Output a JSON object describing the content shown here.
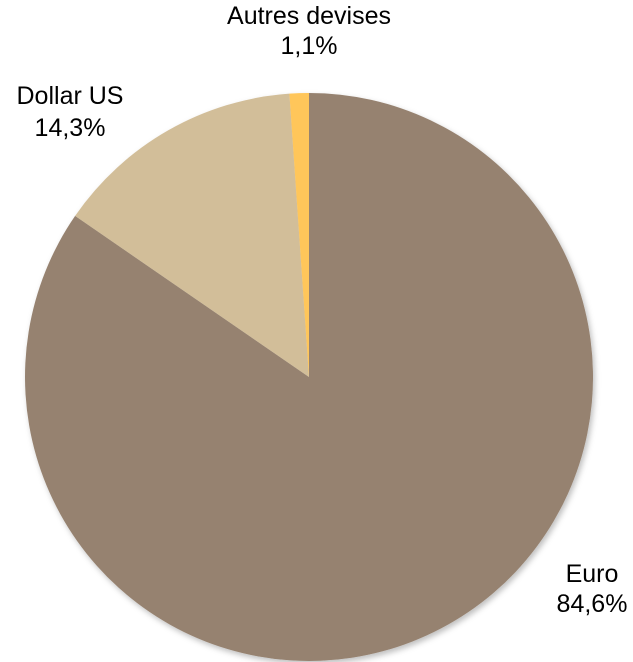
{
  "chart_data": {
    "type": "pie",
    "title": "",
    "start_angle_deg": 0,
    "direction": "clockwise",
    "slices": [
      {
        "name": "Euro",
        "value": 84.6,
        "value_label": "84,6%",
        "color": "#968270"
      },
      {
        "name": "Dollar US",
        "value": 14.3,
        "value_label": "14,3%",
        "color": "#D2BE99"
      },
      {
        "name": "Autres devises",
        "value": 1.1,
        "value_label": "1,1%",
        "color": "#FFC65A"
      }
    ]
  }
}
